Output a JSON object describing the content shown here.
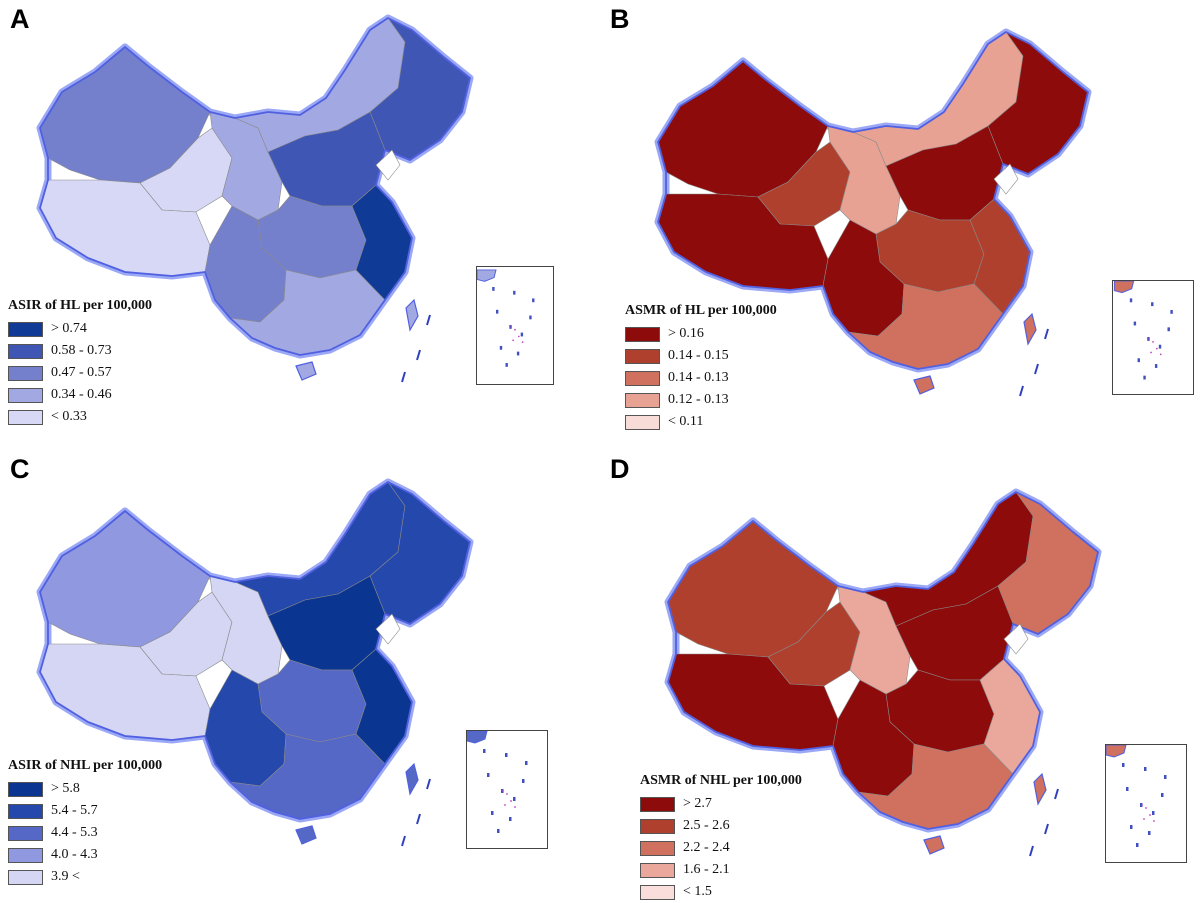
{
  "figure": {
    "panels": [
      {
        "id": "a",
        "letter": "A",
        "legend_title": "ASIR of HL per 100,000",
        "classes": [
          {
            "label": "> 0.74",
            "color": "#0f3a96"
          },
          {
            "label": "0.58 - 0.73",
            "color": "#3f56b4"
          },
          {
            "label": "0.47 - 0.57",
            "color": "#7480cc"
          },
          {
            "label": "0.34 - 0.46",
            "color": "#a2a8e2"
          },
          {
            "label": "< 0.33",
            "color": "#d6d8f6"
          }
        ]
      },
      {
        "id": "b",
        "letter": "B",
        "legend_title": "ASMR of HL per 100,000",
        "classes": [
          {
            "label": "> 0.16",
            "color": "#8e0b0b"
          },
          {
            "label": "0.14 - 0.15",
            "color": "#b0402e"
          },
          {
            "label": "0.14 - 0.13",
            "color": "#d0705e"
          },
          {
            "label": "0.12 - 0.13",
            "color": "#e8a294"
          },
          {
            "label": "< 0.11",
            "color": "#f8dcd8"
          }
        ]
      },
      {
        "id": "c",
        "letter": "C",
        "legend_title": "ASIR of NHL per 100,000",
        "classes": [
          {
            "label": "> 5.8",
            "color": "#0a3590"
          },
          {
            "label": "5.4 - 5.7",
            "color": "#2448ac"
          },
          {
            "label": "4.4 - 5.3",
            "color": "#5668c6"
          },
          {
            "label": "4.0 - 4.3",
            "color": "#9098e0"
          },
          {
            "label": "3.9 <",
            "color": "#d4d6f4"
          }
        ]
      },
      {
        "id": "d",
        "letter": "D",
        "legend_title": "ASMR of NHL per 100,000",
        "classes": [
          {
            "label": "> 2.7",
            "color": "#8e0b0b"
          },
          {
            "label": "2.5 - 2.6",
            "color": "#b0402e"
          },
          {
            "label": "2.2 - 2.4",
            "color": "#d0705e"
          },
          {
            "label": "1.6 - 2.1",
            "color": "#eaa89c"
          },
          {
            "label": "< 1.5",
            "color": "#fadedb"
          }
        ]
      }
    ],
    "region_classes": {
      "a": {
        "xinjiang": 2,
        "tibet": 4,
        "qinghai": 4,
        "gansu": 3,
        "inner_mongolia": 3,
        "northeast": 1,
        "north_china": 1,
        "central": 2,
        "southwest": 2,
        "south": 3,
        "east_coast": 0
      },
      "b": {
        "xinjiang": 0,
        "tibet": 0,
        "qinghai": 1,
        "gansu": 3,
        "inner_mongolia": 3,
        "northeast": 0,
        "north_china": 0,
        "central": 1,
        "southwest": 0,
        "south": 2,
        "east_coast": 1
      },
      "c": {
        "xinjiang": 3,
        "tibet": 4,
        "qinghai": 4,
        "gansu": 4,
        "inner_mongolia": 1,
        "northeast": 1,
        "north_china": 0,
        "central": 2,
        "southwest": 1,
        "south": 2,
        "east_coast": 0
      },
      "d": {
        "xinjiang": 1,
        "tibet": 0,
        "qinghai": 1,
        "gansu": 3,
        "inner_mongolia": 0,
        "northeast": 2,
        "north_china": 0,
        "central": 0,
        "southwest": 0,
        "south": 2,
        "east_coast": 3
      }
    }
  }
}
